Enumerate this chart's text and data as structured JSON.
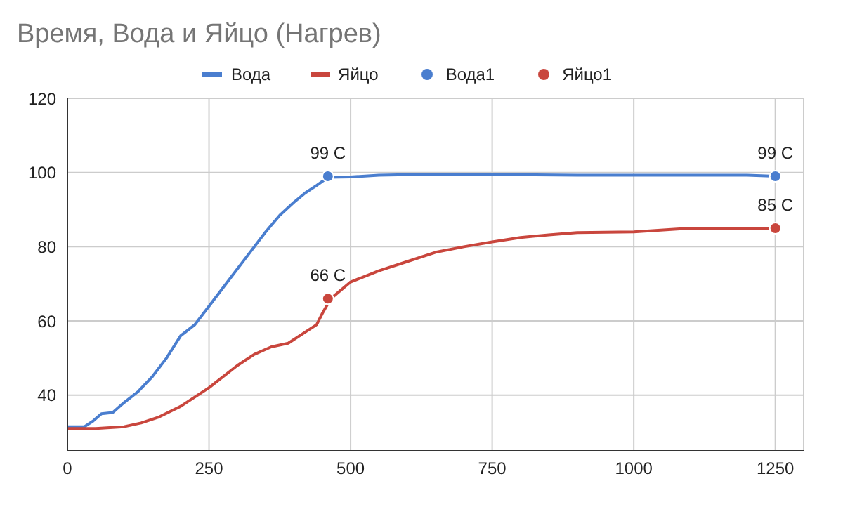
{
  "chart_data": {
    "type": "line",
    "title": "Время, Вода и Яйцо (Нагрев)",
    "xlim": [
      0,
      1300
    ],
    "xticks": [
      0,
      250,
      500,
      750,
      1000,
      1250
    ],
    "ylim": [
      25,
      120
    ],
    "yticks": [
      40,
      60,
      80,
      100,
      120
    ],
    "grid": true,
    "legend": "top",
    "marker": "none",
    "line_style": "solid",
    "series": [
      {
        "name": "Вода",
        "color": "#4a7ecf",
        "x": [
          0,
          30,
          45,
          60,
          80,
          100,
          125,
          150,
          175,
          200,
          225,
          250,
          275,
          300,
          325,
          350,
          375,
          400,
          420,
          440,
          460,
          500,
          550,
          600,
          700,
          800,
          900,
          1000,
          1100,
          1200,
          1250
        ],
        "values": [
          31.5,
          31.5,
          33,
          35,
          35.3,
          38,
          41,
          45,
          50,
          56,
          59,
          64,
          69,
          74,
          79,
          84,
          88.5,
          92,
          94.5,
          96.5,
          98.7,
          98.8,
          99.3,
          99.4,
          99.4,
          99.4,
          99.3,
          99.3,
          99.3,
          99.3,
          99
        ]
      },
      {
        "name": "Яйцо",
        "color": "#c9463d",
        "x": [
          0,
          50,
          100,
          130,
          160,
          200,
          250,
          300,
          330,
          360,
          390,
          420,
          440,
          450,
          465,
          500,
          550,
          600,
          650,
          700,
          750,
          800,
          850,
          900,
          1000,
          1100,
          1200,
          1250
        ],
        "values": [
          31,
          31,
          31.5,
          32.5,
          34,
          37,
          42,
          48,
          51,
          53,
          54,
          57,
          59,
          62,
          66,
          70.5,
          73.5,
          76,
          78.5,
          80,
          81.3,
          82.5,
          83.2,
          83.8,
          84,
          85,
          85,
          85
        ]
      },
      {
        "name": "Вода1",
        "type": "scatter",
        "color": "#4a7ecf",
        "marker": "circle",
        "x": [
          460,
          1250
        ],
        "values": [
          99,
          99
        ],
        "value_labels": [
          "99 C",
          "99 C"
        ]
      },
      {
        "name": "Яйцо1",
        "type": "scatter",
        "color": "#c9463d",
        "marker": "circle",
        "x": [
          460,
          1250
        ],
        "values": [
          66,
          85
        ],
        "value_labels": [
          "66 C",
          "85 C"
        ]
      }
    ]
  }
}
